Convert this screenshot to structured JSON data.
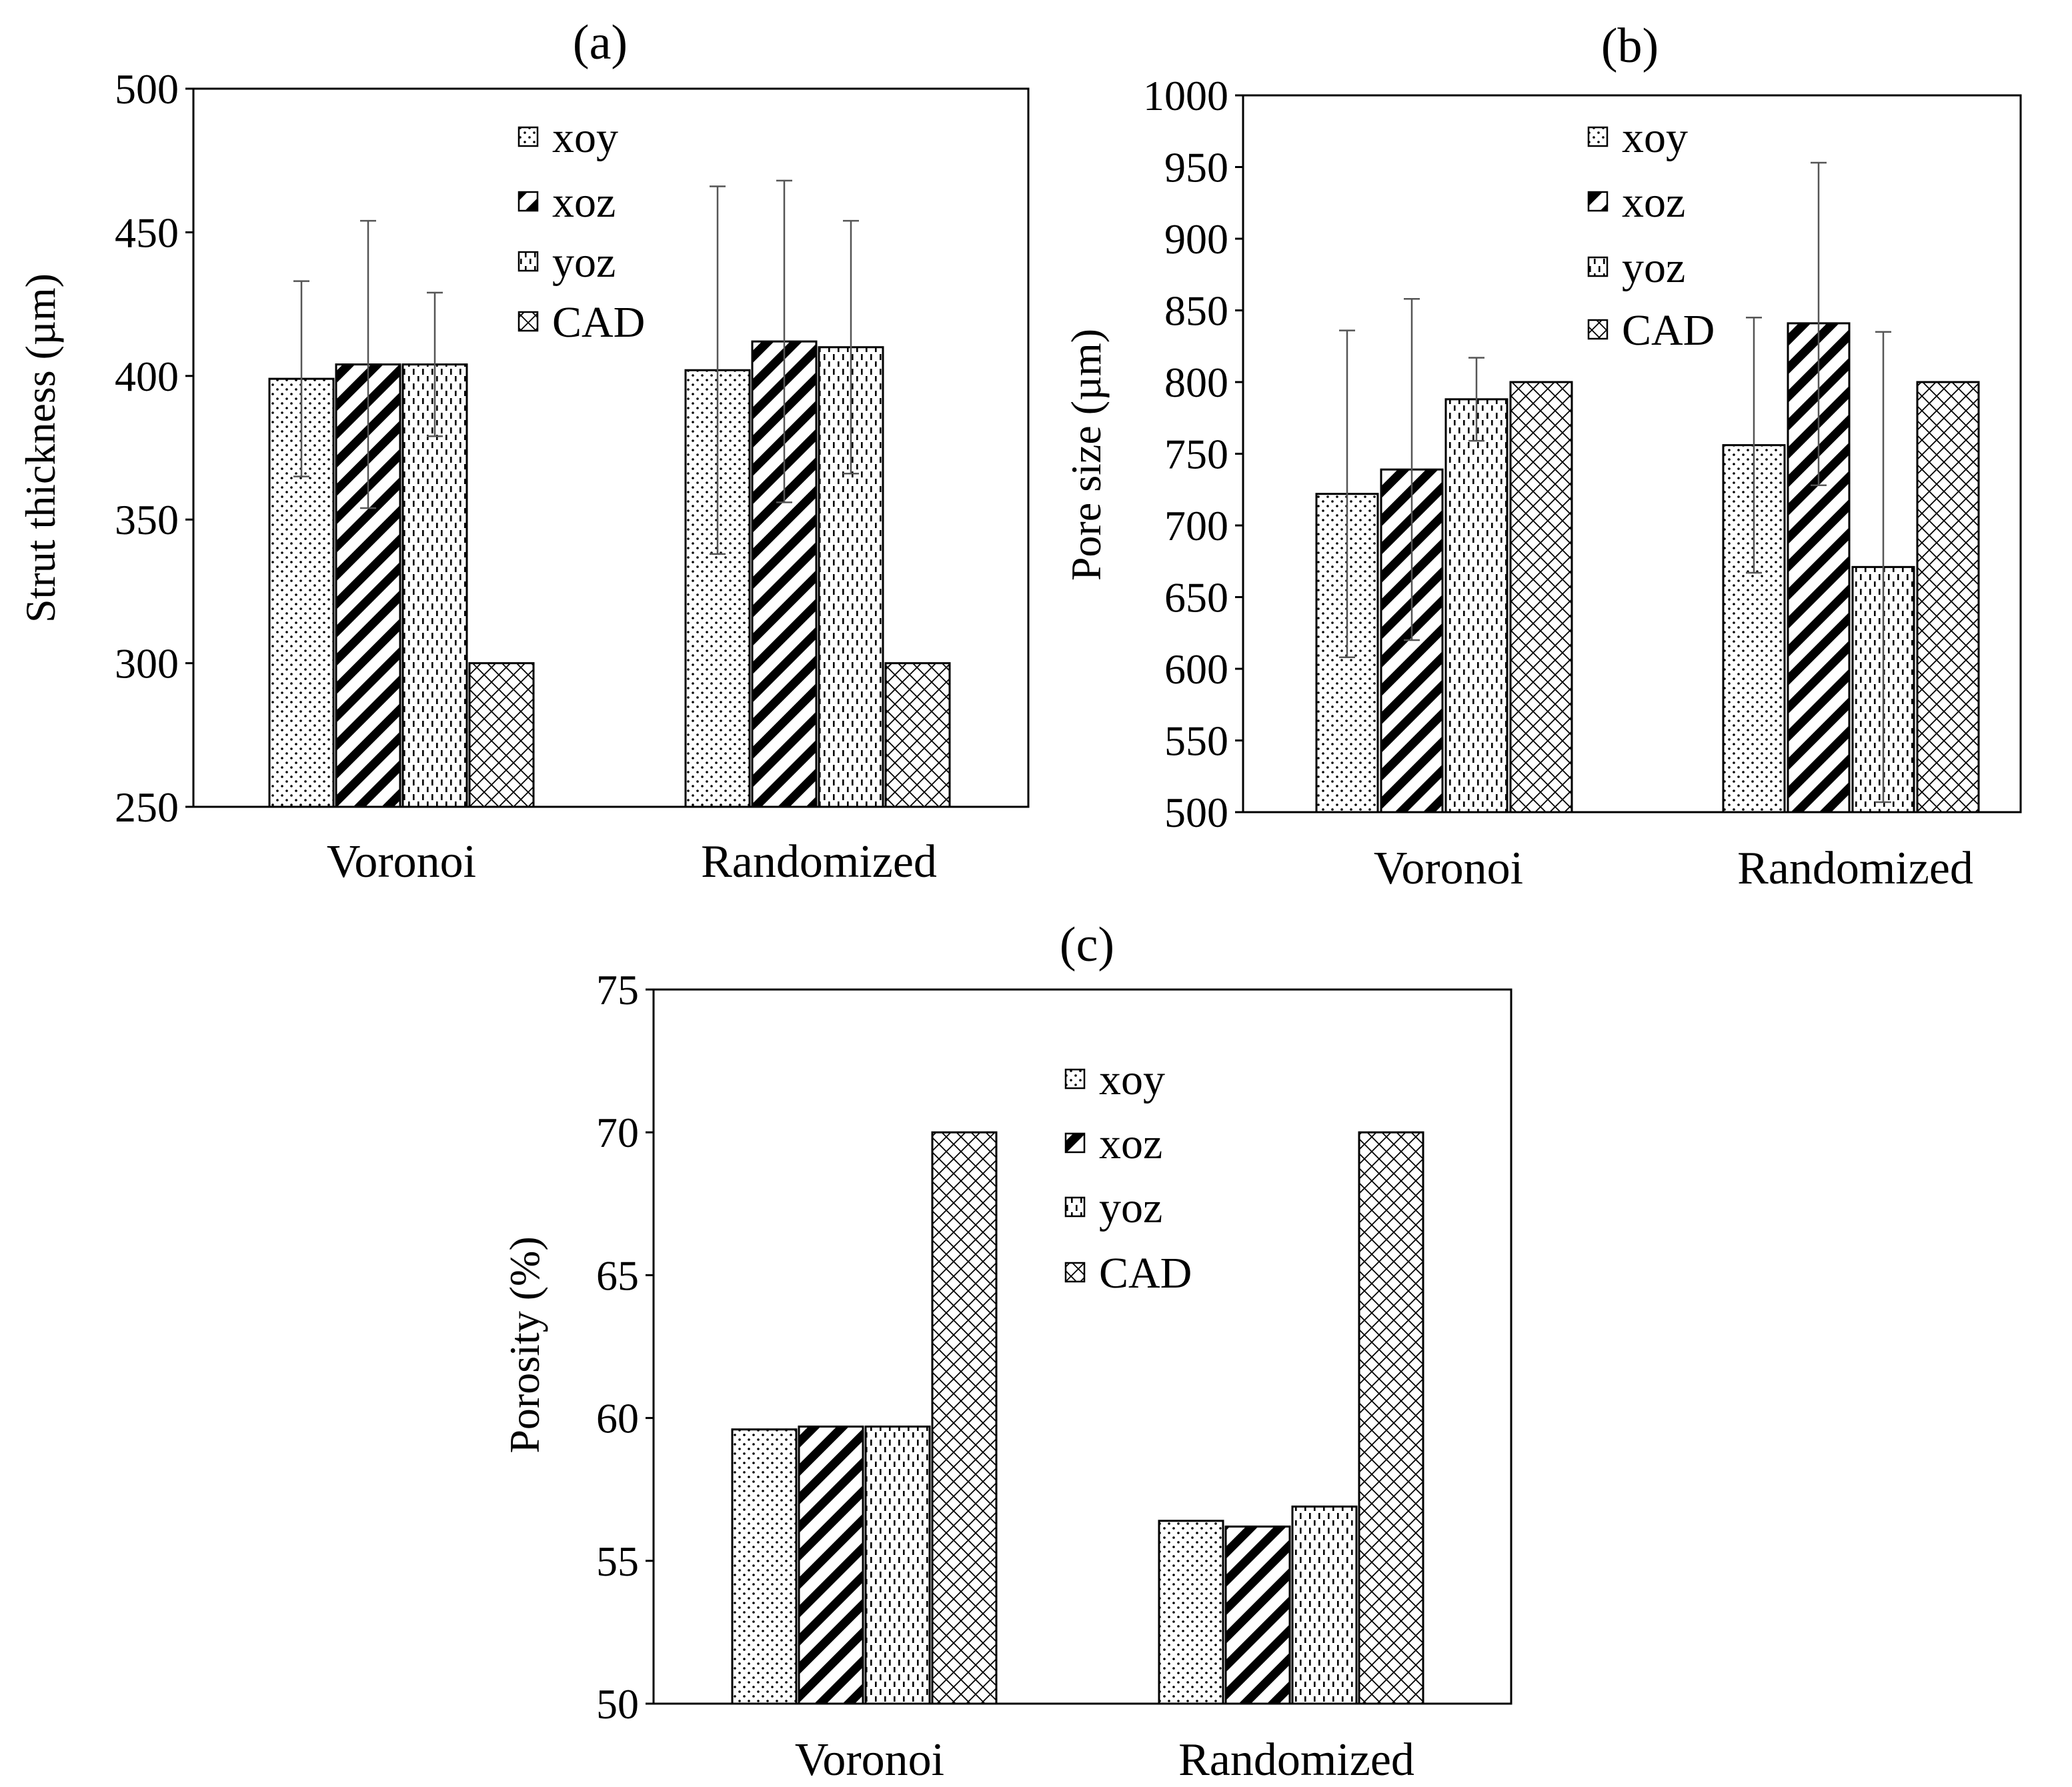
{
  "chart_data": [
    {
      "type": "bar",
      "panel": "(a)",
      "ylabel": "Strut thickness (µm)",
      "xlabel": "",
      "ylim": [
        250,
        500
      ],
      "yticks": [
        250,
        300,
        350,
        400,
        450,
        500
      ],
      "ytick_labels": [
        "250",
        "300",
        "350",
        "400",
        "450",
        "500"
      ],
      "categories": [
        "Voronoi",
        "Randomized"
      ],
      "legend_position": "top-center",
      "series": [
        {
          "name": "xoy",
          "pattern": "dots",
          "values": [
            399,
            402
          ],
          "err_low": [
            365,
            338
          ],
          "err_high": [
            433,
            466
          ]
        },
        {
          "name": "xoz",
          "pattern": "diag",
          "values": [
            404,
            412
          ],
          "err_low": [
            354,
            356
          ],
          "err_high": [
            454,
            468
          ]
        },
        {
          "name": "yoz",
          "pattern": "dash",
          "values": [
            404,
            410
          ],
          "err_low": [
            379,
            366
          ],
          "err_high": [
            429,
            454
          ]
        },
        {
          "name": "CAD",
          "pattern": "cross",
          "values": [
            300,
            300
          ]
        }
      ]
    },
    {
      "type": "bar",
      "panel": "(b)",
      "ylabel": "Pore size (µm)",
      "xlabel": "",
      "ylim": [
        500,
        1000
      ],
      "yticks": [
        500,
        550,
        600,
        650,
        700,
        750,
        800,
        850,
        900,
        950,
        1000
      ],
      "ytick_labels": [
        "500",
        "550",
        "600",
        "650",
        "700",
        "750",
        "800",
        "850",
        "900",
        "950",
        "1000"
      ],
      "categories": [
        "Voronoi",
        "Randomized"
      ],
      "legend_position": "top-center",
      "series": [
        {
          "name": "xoy",
          "pattern": "dots",
          "values": [
            722,
            756
          ],
          "err_low": [
            608,
            667
          ],
          "err_high": [
            836,
            845
          ]
        },
        {
          "name": "xoz",
          "pattern": "diag",
          "values": [
            739,
            841
          ],
          "err_low": [
            620,
            728
          ],
          "err_high": [
            858,
            953
          ]
        },
        {
          "name": "yoz",
          "pattern": "dash",
          "values": [
            788,
            671
          ],
          "err_low": [
            759,
            507
          ],
          "err_high": [
            817,
            835
          ]
        },
        {
          "name": "CAD",
          "pattern": "cross",
          "values": [
            800,
            800
          ]
        }
      ]
    },
    {
      "type": "bar",
      "panel": "(c)",
      "ylabel": "Porosity (%)",
      "xlabel": "",
      "ylim": [
        50,
        75
      ],
      "yticks": [
        50,
        55,
        60,
        65,
        70,
        75
      ],
      "ytick_labels": [
        "50",
        "55",
        "60",
        "65",
        "70",
        "75"
      ],
      "categories": [
        "Voronoi",
        "Randomized"
      ],
      "legend_position": "top-center",
      "series": [
        {
          "name": "xoy",
          "pattern": "dots",
          "values": [
            59.6,
            56.4
          ]
        },
        {
          "name": "xoz",
          "pattern": "diag",
          "values": [
            59.7,
            56.2
          ]
        },
        {
          "name": "yoz",
          "pattern": "dash",
          "values": [
            59.7,
            56.9
          ]
        },
        {
          "name": "CAD",
          "pattern": "cross",
          "values": [
            70,
            70
          ]
        }
      ]
    }
  ]
}
